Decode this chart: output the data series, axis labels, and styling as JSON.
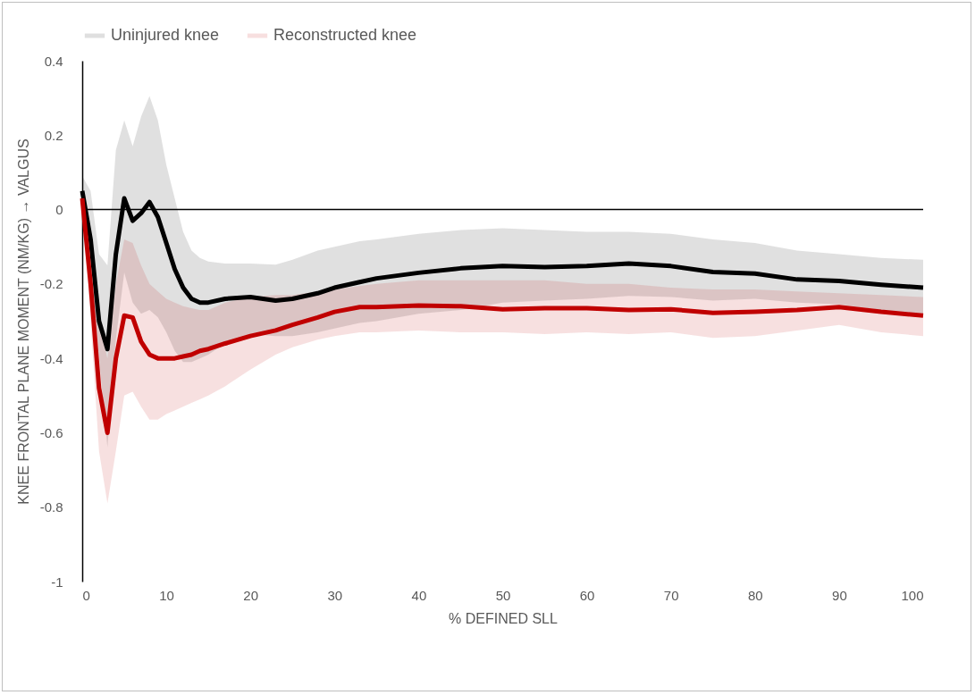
{
  "chart_data": {
    "type": "line",
    "xlabel": "% DEFINED SLL",
    "ylabel": "KNEE FRONTAL PLANE MOMENT (NM/KG)  → VALGUS",
    "xlim": [
      0,
      100
    ],
    "xticks": [
      0,
      10,
      20,
      30,
      40,
      50,
      60,
      70,
      80,
      90,
      100
    ],
    "ylim": [
      -1,
      0.4
    ],
    "yticks": [
      -1,
      -0.8,
      -0.6,
      -0.4,
      -0.2,
      0,
      0.2,
      0.4
    ],
    "grid": false,
    "legend": "top",
    "ref_lines": [
      {
        "axis": "y",
        "value": 0
      }
    ],
    "x": [
      0,
      1,
      2,
      3,
      4,
      5,
      6,
      7,
      8,
      9,
      10,
      11,
      12,
      13,
      14,
      15,
      17,
      20,
      23,
      25,
      28,
      30,
      33,
      35,
      40,
      45,
      50,
      55,
      60,
      65,
      70,
      75,
      80,
      85,
      90,
      95,
      100
    ],
    "series": [
      {
        "name": "Uninjured knee",
        "color": "#000000",
        "values": [
          0.05,
          -0.08,
          -0.3,
          -0.375,
          -0.12,
          0.03,
          -0.03,
          -0.01,
          0.02,
          -0.02,
          -0.09,
          -0.16,
          -0.21,
          -0.24,
          -0.25,
          -0.25,
          -0.24,
          -0.235,
          -0.245,
          -0.24,
          -0.225,
          -0.21,
          -0.195,
          -0.185,
          -0.17,
          -0.158,
          -0.152,
          -0.155,
          -0.152,
          -0.145,
          -0.152,
          -0.168,
          -0.172,
          -0.188,
          -0.192,
          -0.202,
          -0.21
        ],
        "lower": [
          0.02,
          -0.15,
          -0.4,
          -0.64,
          -0.35,
          -0.17,
          -0.25,
          -0.28,
          -0.27,
          -0.29,
          -0.33,
          -0.38,
          -0.41,
          -0.41,
          -0.4,
          -0.39,
          -0.36,
          -0.335,
          -0.34,
          -0.34,
          -0.33,
          -0.32,
          -0.305,
          -0.3,
          -0.28,
          -0.27,
          -0.25,
          -0.245,
          -0.24,
          -0.232,
          -0.235,
          -0.245,
          -0.24,
          -0.25,
          -0.255,
          -0.27,
          -0.28
        ],
        "upper": [
          0.09,
          0.05,
          -0.12,
          -0.15,
          0.16,
          0.24,
          0.17,
          0.25,
          0.305,
          0.24,
          0.12,
          0.03,
          -0.06,
          -0.11,
          -0.13,
          -0.14,
          -0.145,
          -0.145,
          -0.148,
          -0.135,
          -0.11,
          -0.1,
          -0.085,
          -0.08,
          -0.065,
          -0.055,
          -0.05,
          -0.055,
          -0.06,
          -0.06,
          -0.065,
          -0.08,
          -0.09,
          -0.11,
          -0.12,
          -0.13,
          -0.135
        ]
      },
      {
        "name": "Reconstructed knee",
        "color": "#c00000",
        "values": [
          0.03,
          -0.2,
          -0.48,
          -0.6,
          -0.4,
          -0.285,
          -0.29,
          -0.355,
          -0.39,
          -0.4,
          -0.4,
          -0.4,
          -0.395,
          -0.39,
          -0.38,
          -0.375,
          -0.36,
          -0.34,
          -0.325,
          -0.31,
          -0.29,
          -0.275,
          -0.262,
          -0.262,
          -0.258,
          -0.26,
          -0.268,
          -0.265,
          -0.265,
          -0.27,
          -0.268,
          -0.278,
          -0.275,
          -0.27,
          -0.262,
          -0.275,
          -0.285
        ],
        "lower": [
          0.0,
          -0.3,
          -0.65,
          -0.79,
          -0.65,
          -0.5,
          -0.49,
          -0.53,
          -0.565,
          -0.565,
          -0.55,
          -0.54,
          -0.53,
          -0.52,
          -0.51,
          -0.5,
          -0.475,
          -0.43,
          -0.39,
          -0.37,
          -0.35,
          -0.34,
          -0.33,
          -0.33,
          -0.325,
          -0.33,
          -0.33,
          -0.335,
          -0.33,
          -0.335,
          -0.33,
          -0.345,
          -0.34,
          -0.325,
          -0.31,
          -0.33,
          -0.34
        ],
        "upper": [
          0.05,
          -0.1,
          -0.3,
          -0.4,
          -0.2,
          -0.08,
          -0.09,
          -0.15,
          -0.2,
          -0.22,
          -0.24,
          -0.25,
          -0.26,
          -0.265,
          -0.27,
          -0.27,
          -0.25,
          -0.235,
          -0.23,
          -0.23,
          -0.22,
          -0.215,
          -0.205,
          -0.2,
          -0.19,
          -0.19,
          -0.19,
          -0.19,
          -0.2,
          -0.2,
          -0.21,
          -0.215,
          -0.215,
          -0.22,
          -0.225,
          -0.23,
          -0.235
        ]
      }
    ]
  }
}
